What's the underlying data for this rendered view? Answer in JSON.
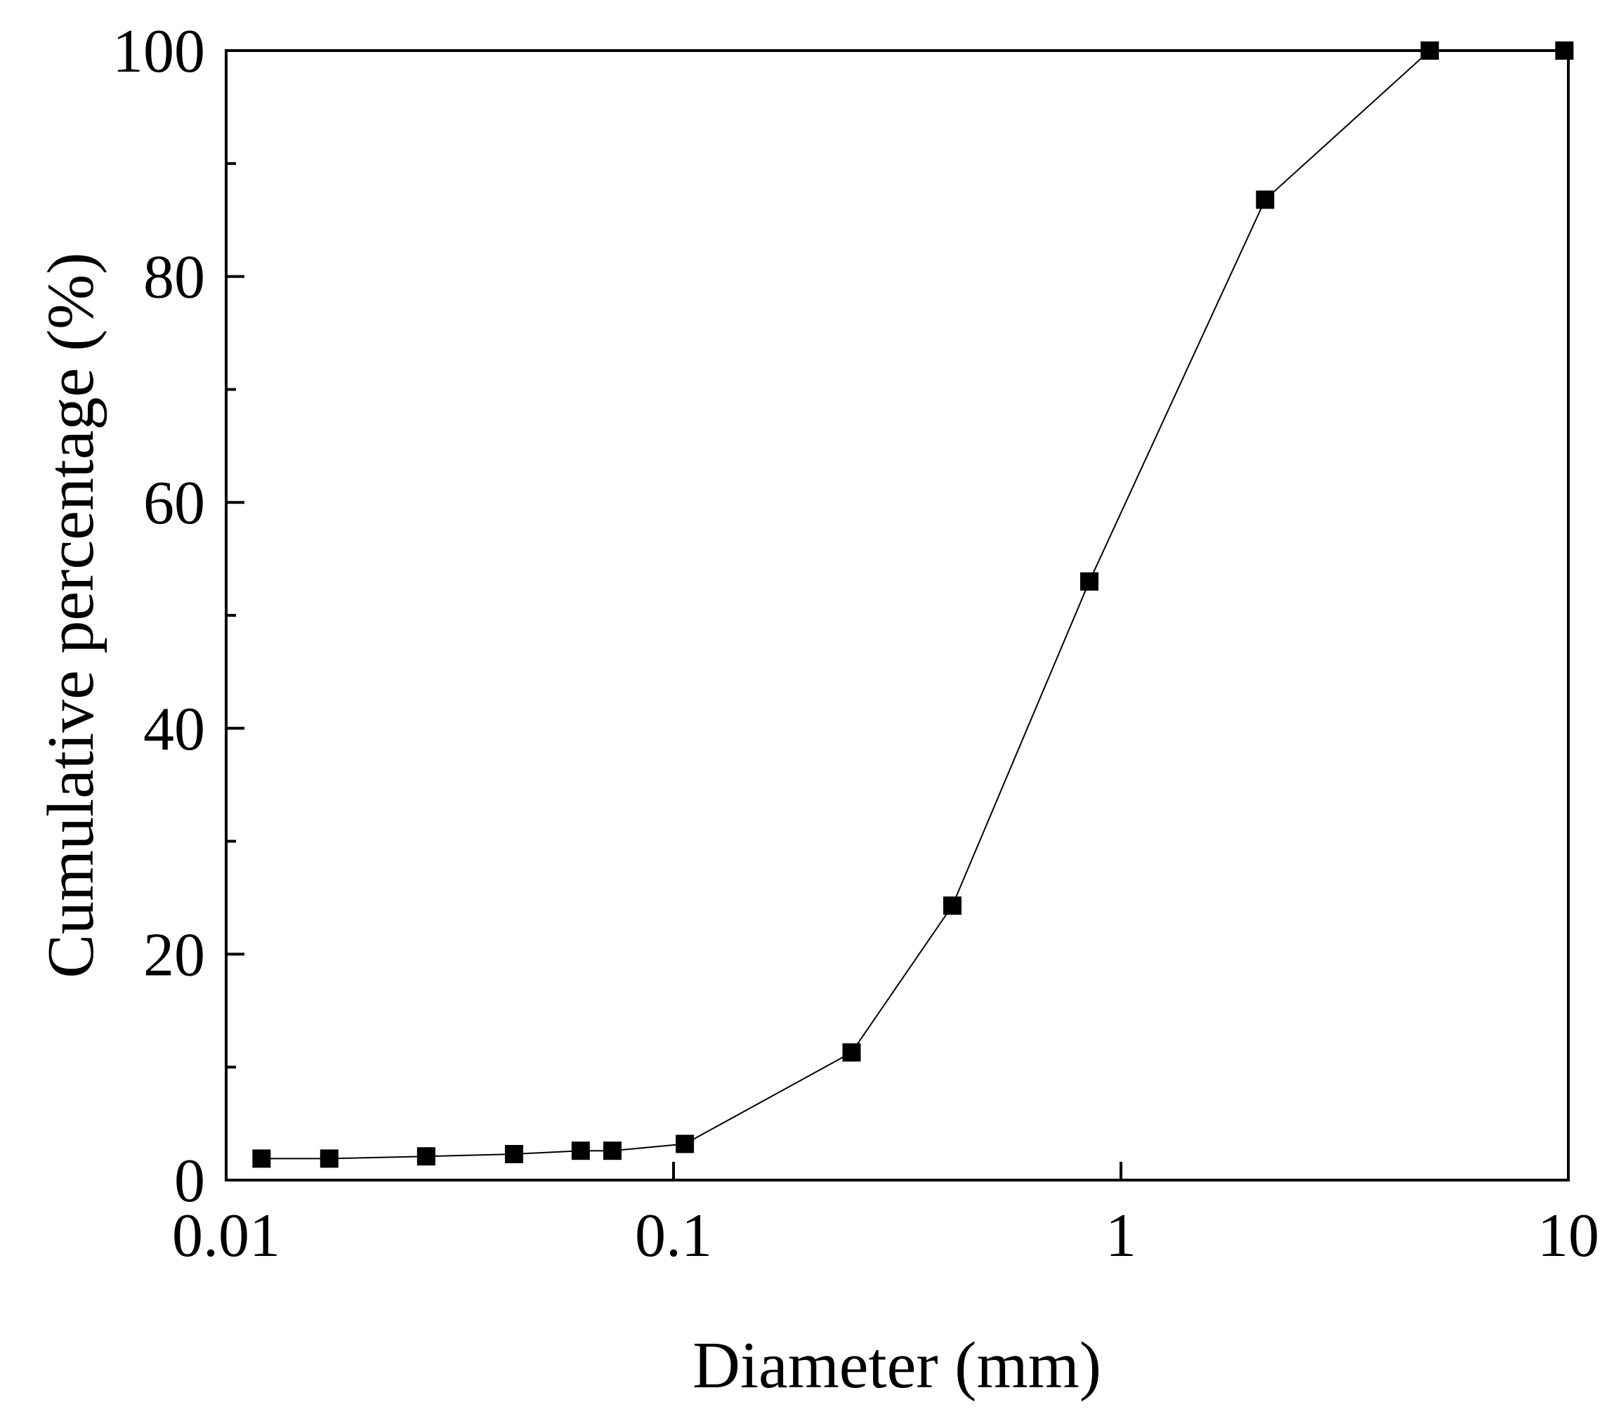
{
  "chart_data": {
    "type": "line",
    "xlabel": "Diameter (mm)",
    "ylabel": "Cumulative percentage (%)",
    "x_scale": "log",
    "xlim": [
      0.01,
      10
    ],
    "ylim": [
      0,
      100
    ],
    "x_ticks": [
      0.01,
      0.1,
      1,
      10
    ],
    "x_tick_labels": [
      "0.01",
      "0.1",
      "1",
      "10"
    ],
    "y_ticks": [
      0,
      20,
      40,
      60,
      80,
      100
    ],
    "y_tick_labels": [
      "0",
      "20",
      "40",
      "60",
      "80",
      "100"
    ],
    "grid": false,
    "marker": "square",
    "color": "#000000",
    "series": [
      {
        "x": [
          0.012,
          0.017,
          0.028,
          0.044,
          0.062,
          0.073,
          0.106,
          0.25,
          0.42,
          0.85,
          2.1,
          4.9,
          9.8
        ],
        "y": [
          1.9,
          1.9,
          2.1,
          2.3,
          2.6,
          2.6,
          3.2,
          11.3,
          24.3,
          53,
          86.8,
          100,
          100
        ]
      }
    ]
  }
}
